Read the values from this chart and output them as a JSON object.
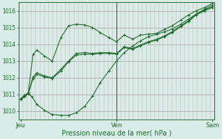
{
  "bg_color": "#d8ede8",
  "line_color": "#1a6b2a",
  "xlabel": "Pression niveau de la mer( hPa )",
  "xlabel_color": "#1a6b2a",
  "tick_label_color": "#1a6b2a",
  "xtick_labels": [
    "Jeu",
    "Ven",
    "Sam"
  ],
  "xtick_positions": [
    0.0,
    1.0,
    2.0
  ],
  "xlim": [
    -0.02,
    2.02
  ],
  "ylim": [
    1009.5,
    1016.5
  ],
  "yticks": [
    1010,
    1011,
    1012,
    1013,
    1014,
    1015,
    1016
  ],
  "vline_x": 1.0,
  "n_minor_v": 46,
  "series": [
    {
      "x": [
        0.0,
        0.04,
        0.08,
        0.12,
        0.17,
        0.25,
        0.33,
        0.42,
        0.5,
        0.58,
        0.67,
        0.75,
        0.83,
        0.92,
        1.0,
        1.08,
        1.17,
        1.25,
        1.33,
        1.42,
        1.5,
        1.58,
        1.67,
        1.75,
        1.83,
        1.92,
        2.0
      ],
      "y": [
        1010.7,
        1010.85,
        1011.05,
        1010.85,
        1010.4,
        1010.05,
        1009.8,
        1009.75,
        1009.75,
        1009.9,
        1010.3,
        1010.9,
        1011.7,
        1012.4,
        1013.0,
        1013.5,
        1013.9,
        1014.2,
        1014.45,
        1014.6,
        1014.75,
        1014.9,
        1015.2,
        1015.5,
        1015.8,
        1016.1,
        1016.35
      ]
    },
    {
      "x": [
        0.0,
        0.04,
        0.08,
        0.13,
        0.17,
        0.25,
        0.33,
        0.42,
        0.5,
        0.58,
        0.67,
        0.75,
        0.83,
        0.92,
        1.0,
        1.08,
        1.17,
        1.25,
        1.33,
        1.42,
        1.5,
        1.58,
        1.67,
        1.75,
        1.83,
        1.92,
        2.0
      ],
      "y": [
        1010.75,
        1010.95,
        1011.1,
        1013.4,
        1013.65,
        1013.3,
        1013.0,
        1014.4,
        1015.1,
        1015.2,
        1015.15,
        1015.0,
        1014.7,
        1014.4,
        1014.15,
        1014.55,
        1014.3,
        1014.55,
        1014.6,
        1014.65,
        1014.9,
        1015.1,
        1015.45,
        1015.75,
        1016.0,
        1016.2,
        1016.45
      ]
    },
    {
      "x": [
        0.0,
        0.04,
        0.08,
        0.13,
        0.17,
        0.25,
        0.33,
        0.42,
        0.5,
        0.58,
        0.67,
        0.75,
        0.83,
        0.92,
        1.0,
        1.08,
        1.17,
        1.25,
        1.33,
        1.42,
        1.5,
        1.58,
        1.67,
        1.75,
        1.83,
        1.92,
        2.0
      ],
      "y": [
        1010.7,
        1010.9,
        1011.05,
        1012.05,
        1012.3,
        1012.1,
        1012.0,
        1012.5,
        1013.0,
        1013.45,
        1013.5,
        1013.45,
        1013.5,
        1013.5,
        1013.45,
        1013.85,
        1013.75,
        1013.95,
        1014.15,
        1014.3,
        1014.5,
        1014.75,
        1015.1,
        1015.4,
        1015.8,
        1016.05,
        1016.25
      ]
    },
    {
      "x": [
        0.0,
        0.04,
        0.08,
        0.13,
        0.17,
        0.25,
        0.33,
        0.42,
        0.5,
        0.58,
        0.67,
        0.75,
        0.83,
        0.92,
        1.0,
        1.08,
        1.17,
        1.25,
        1.33,
        1.42,
        1.5,
        1.58,
        1.67,
        1.75,
        1.83,
        1.92,
        2.0
      ],
      "y": [
        1010.7,
        1010.9,
        1011.05,
        1011.95,
        1012.2,
        1012.05,
        1011.95,
        1012.4,
        1012.95,
        1013.35,
        1013.4,
        1013.4,
        1013.45,
        1013.45,
        1013.4,
        1013.8,
        1013.7,
        1013.9,
        1014.1,
        1014.25,
        1014.45,
        1014.7,
        1015.05,
        1015.35,
        1015.75,
        1016.0,
        1016.2
      ]
    }
  ]
}
